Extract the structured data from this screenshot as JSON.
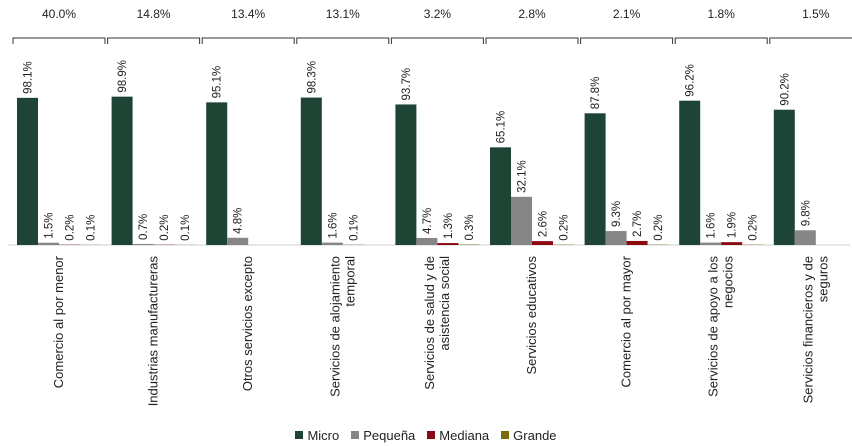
{
  "chart_data": {
    "type": "bar",
    "title": "",
    "xlabel": "",
    "ylabel": "",
    "categories": [
      "Comercio al por menor",
      "Industrias manufactureras",
      "Otros servicios excepto",
      "Servicios de alojamiento temporal",
      "Servicios de salud y de asistencia social",
      "Servicios educativos",
      "Comercio al por mayor",
      "Servicios de apoyo a los negocios",
      "Servicios financieros y de seguros"
    ],
    "category_lines": [
      [
        "Comercio al por menor"
      ],
      [
        "Industrias manufactureras"
      ],
      [
        "Otros servicios excepto"
      ],
      [
        "Servicios de alojamiento",
        "temporal"
      ],
      [
        "Servicios de salud y de",
        "asistencia social"
      ],
      [
        "Servicios educativos"
      ],
      [
        "Comercio al por mayor"
      ],
      [
        "Servicios de apoyo a los",
        "negocios"
      ],
      [
        "Servicios financieros y de",
        "seguros"
      ]
    ],
    "totals": [
      "40.0%",
      "14.8%",
      "13.4%",
      "13.1%",
      "3.2%",
      "2.8%",
      "2.1%",
      "1.8%",
      "1.5%"
    ],
    "series": [
      {
        "name": "Micro",
        "color": "#1e4436",
        "values": [
          98.1,
          98.9,
          95.1,
          98.3,
          93.7,
          65.1,
          87.8,
          96.2,
          90.2
        ],
        "labels": [
          "98.1%",
          "98.9%",
          "95.1%",
          "98.3%",
          "93.7%",
          "65.1%",
          "87.8%",
          "96.2%",
          "90.2%"
        ]
      },
      {
        "name": "Pequeña",
        "color": "#868686",
        "values": [
          1.5,
          0.7,
          4.8,
          1.6,
          4.7,
          32.1,
          9.3,
          1.6,
          9.8
        ],
        "labels": [
          "1.5%",
          "0.7%",
          "4.8%",
          "1.6%",
          "4.7%",
          "32.1%",
          "9.3%",
          "1.6%",
          "9.8%"
        ]
      },
      {
        "name": "Mediana",
        "color": "#8b0a12",
        "values": [
          0.2,
          0.2,
          null,
          0.1,
          1.3,
          2.6,
          2.7,
          1.9,
          null
        ],
        "labels": [
          "0.2%",
          "0.2%",
          null,
          "0.1%",
          "1.3%",
          "2.6%",
          "2.7%",
          "1.9%",
          null
        ]
      },
      {
        "name": "Grande",
        "color": "#7a6a10",
        "values": [
          0.1,
          0.1,
          null,
          null,
          0.3,
          0.2,
          0.2,
          0.2,
          null
        ],
        "labels": [
          "0.1%",
          "0.1%",
          null,
          null,
          "0.3%",
          "0.2%",
          "0.2%",
          "0.2%",
          null
        ]
      }
    ],
    "ylim": [
      0,
      100
    ],
    "grid": false,
    "legend_position": "bottom"
  }
}
